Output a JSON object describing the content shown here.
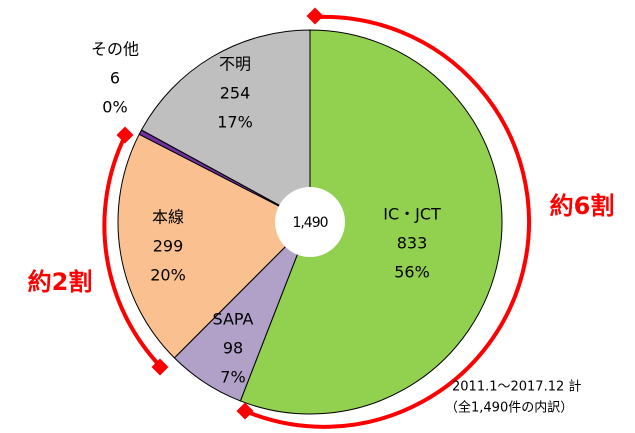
{
  "chart_data": {
    "type": "pie",
    "categories": [
      "IC・JCT",
      "SAPA",
      "本線",
      "その他",
      "不明"
    ],
    "values": [
      833,
      98,
      299,
      6,
      254
    ],
    "percent_labels": [
      "56%",
      "7%",
      "20%",
      "0%",
      "17%"
    ],
    "colors": [
      "#92d050",
      "#b1a0c7",
      "#fac090",
      "#7030a0",
      "#bfbfbf"
    ],
    "center_label": "1,490",
    "annotations": [
      "約6割",
      "約2割",
      "2011.1～2017.12 計",
      "（全1,490件の内訳）"
    ]
  }
}
